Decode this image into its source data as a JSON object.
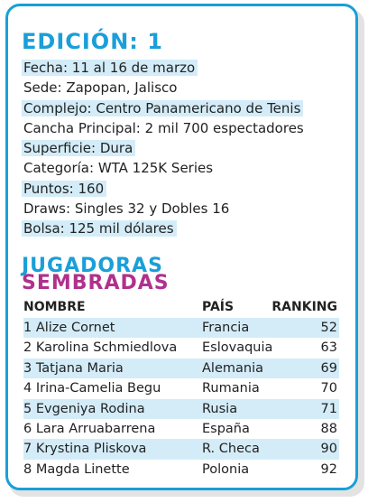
{
  "title": "EDICIÓN: 1",
  "info": [
    {
      "text": "Fecha: 11 al 16 de marzo",
      "highlight": true
    },
    {
      "text": "Sede: Zapopan, Jalisco",
      "highlight": false
    },
    {
      "text": "Complejo: Centro Panamericano de Tenis",
      "highlight": true
    },
    {
      "text": "Cancha Principal: 2 mil 700 espectadores",
      "highlight": false
    },
    {
      "text": "Superficie: Dura",
      "highlight": true
    },
    {
      "text": "Categoría: WTA 125K Series",
      "highlight": false
    },
    {
      "text": "Puntos: 160",
      "highlight": true
    },
    {
      "text": "Draws: Singles 32 y Dobles 16",
      "highlight": false
    },
    {
      "text": "Bolsa: 125 mil dólares",
      "highlight": true
    }
  ],
  "seeds": {
    "heading_line1": "JUGADORAS",
    "heading_line2": "SEMBRADAS",
    "columns": [
      "NOMBRE",
      "PAÍS",
      "RANKING"
    ],
    "rows": [
      {
        "name": "1 Alize Cornet",
        "country": "Francia",
        "ranking": "52",
        "highlight": true
      },
      {
        "name": "2 Karolina Schmiedlova",
        "country": "Eslovaquia",
        "ranking": "63",
        "highlight": false
      },
      {
        "name": "3 Tatjana Maria",
        "country": "Alemania",
        "ranking": "69",
        "highlight": true
      },
      {
        "name": "4 Irina-Camelia Begu",
        "country": "Rumania",
        "ranking": "70",
        "highlight": false
      },
      {
        "name": "5 Evgeniya Rodina",
        "country": "Rusia",
        "ranking": "71",
        "highlight": true
      },
      {
        "name": "6 Lara Arruabarrena",
        "country": "España",
        "ranking": "88",
        "highlight": false
      },
      {
        "name": "7 Krystina Pliskova",
        "country": "R. Checa",
        "ranking": "90",
        "highlight": true
      },
      {
        "name": "8 Magda Linette",
        "country": "Polonia",
        "ranking": "92",
        "highlight": false
      }
    ]
  },
  "colors": {
    "accent": "#1a9fd8",
    "magenta": "#b0308c",
    "highlight": "#d3ecf8"
  }
}
